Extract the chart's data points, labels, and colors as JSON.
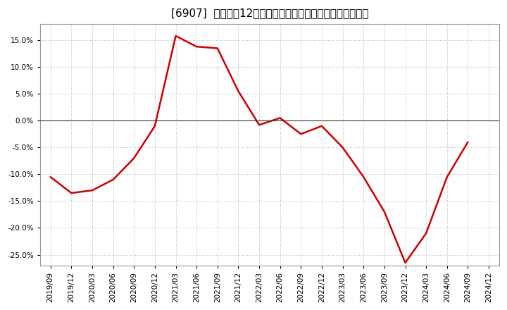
{
  "title": "[6907]  売上高の12か月移動合計の対前年同期増減率の推移",
  "line_color": "#cc0000",
  "background_color": "#ffffff",
  "plot_bg_color": "#ffffff",
  "grid_color": "#aaaaaa",
  "zero_line_color": "#333333",
  "x_labels": [
    "2019/09",
    "2019/12",
    "2020/03",
    "2020/06",
    "2020/09",
    "2020/12",
    "2021/03",
    "2021/06",
    "2021/09",
    "2021/12",
    "2022/03",
    "2022/06",
    "2022/09",
    "2022/12",
    "2023/03",
    "2023/06",
    "2023/09",
    "2023/12",
    "2024/03",
    "2024/06",
    "2024/09",
    "2024/12"
  ],
  "values": [
    -10.5,
    -13.5,
    -13.0,
    -11.0,
    -7.0,
    -1.0,
    15.8,
    13.8,
    13.5,
    5.5,
    -0.8,
    0.5,
    -2.5,
    -1.0,
    -5.0,
    -10.5,
    -17.0,
    -26.5,
    -21.0,
    -10.5,
    -4.0,
    null
  ],
  "ylim": [
    -27,
    18
  ],
  "yticks": [
    -25,
    -20,
    -15,
    -10,
    -5,
    0,
    5,
    10,
    15
  ],
  "title_fontsize": 11,
  "tick_fontsize": 7.5
}
